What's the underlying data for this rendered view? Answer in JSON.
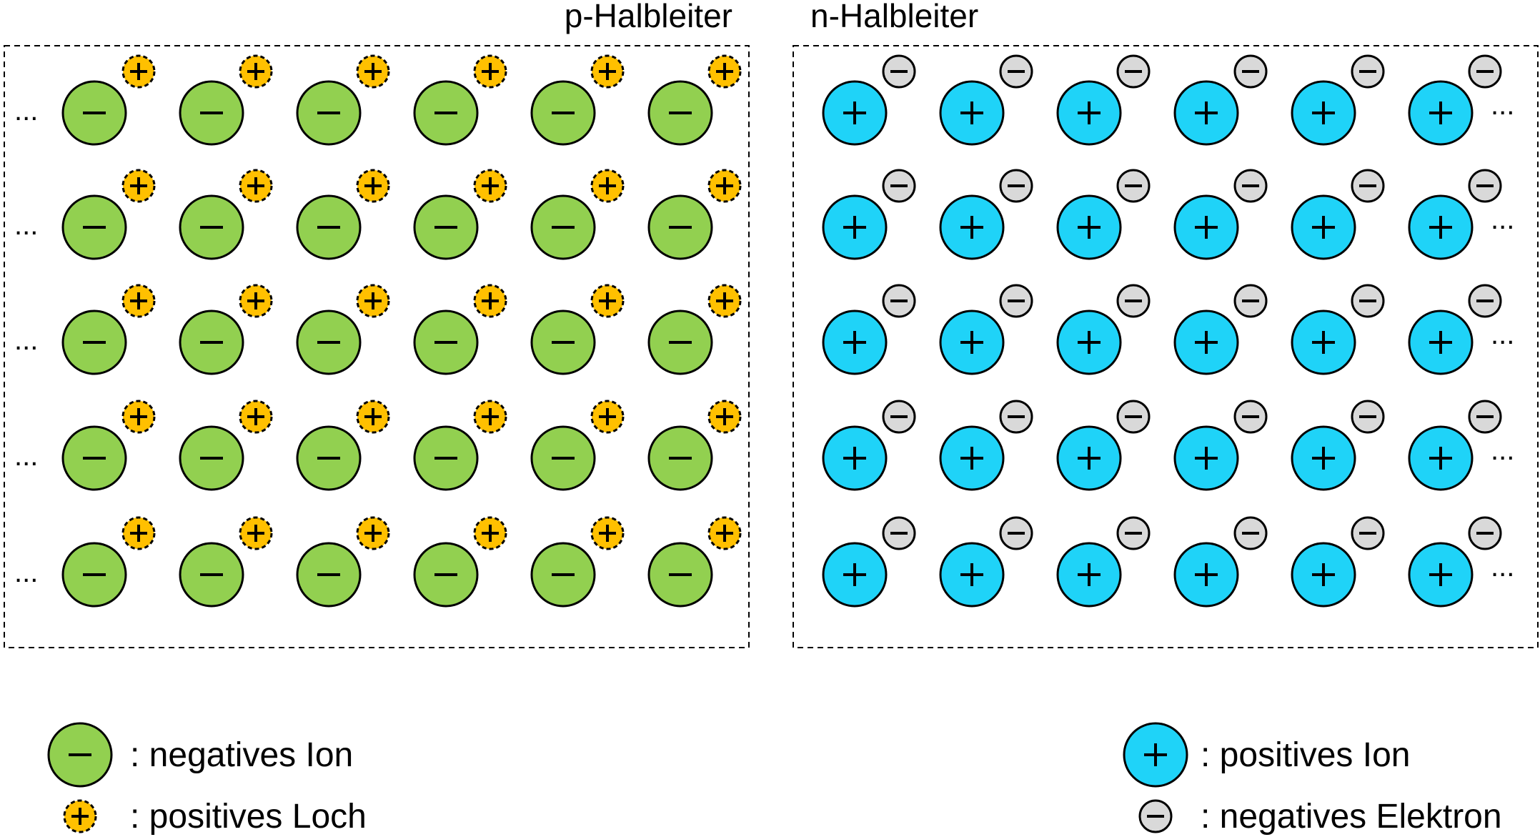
{
  "regions": {
    "p": {
      "title": "p-Halbleiter",
      "ion_sign": "−",
      "carrier_sign": "+",
      "rows": 5,
      "cols": 6,
      "ellipsis": "..."
    },
    "n": {
      "title": "n-Halbleiter",
      "ion_sign": "+",
      "carrier_sign": "−",
      "rows": 5,
      "cols": 6,
      "ellipsis": "..."
    }
  },
  "legend": {
    "negative_ion": ": negatives Ion",
    "positive_hole": ": positives Loch",
    "positive_ion": ": positives Ion",
    "negative_electron": ": negatives Elektron"
  },
  "colors": {
    "negative_ion_fill": "#92D050",
    "positive_hole_fill": "#FFC000",
    "positive_ion_fill": "#1FD3F8",
    "negative_electron_fill": "#D9D9D9",
    "outline": "#000000",
    "border_dash": "#000000"
  },
  "icons": {
    "negative_ion": "green-circle-minus-icon",
    "positive_hole": "orange-dashed-circle-plus-icon",
    "positive_ion": "cyan-circle-plus-icon",
    "negative_electron": "gray-circle-minus-icon"
  }
}
